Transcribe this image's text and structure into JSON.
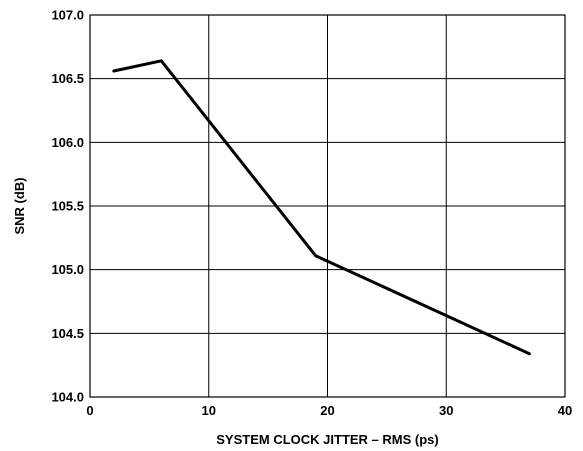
{
  "chart_data": {
    "type": "line",
    "title": "",
    "xlabel": "SYSTEM CLOCK JITTER – RMS (ps)",
    "ylabel": "SNR (dB)",
    "xlim": [
      0,
      40
    ],
    "ylim": [
      104.0,
      107.0
    ],
    "x_ticks": [
      0,
      10,
      20,
      30,
      40
    ],
    "y_ticks": [
      104.0,
      104.5,
      105.0,
      105.5,
      106.0,
      106.5,
      107.0
    ],
    "x_tick_labels": [
      "0",
      "10",
      "20",
      "30",
      "40"
    ],
    "y_tick_labels": [
      "104.0",
      "104.5",
      "105.0",
      "105.5",
      "106.0",
      "106.5",
      "107.0"
    ],
    "grid": true,
    "series": [
      {
        "x": [
          2,
          6,
          19,
          37
        ],
        "y": [
          106.56,
          106.64,
          105.11,
          104.34
        ],
        "color": "#000000"
      }
    ]
  }
}
